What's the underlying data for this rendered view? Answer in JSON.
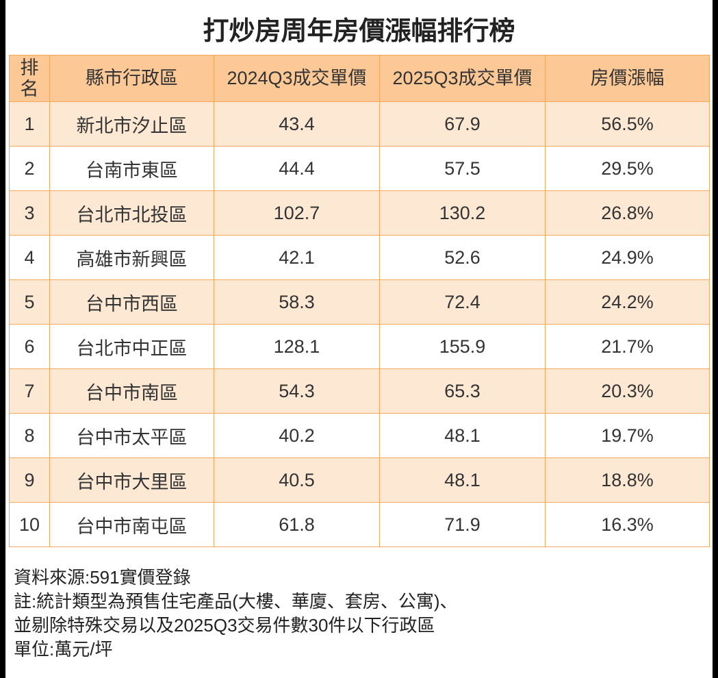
{
  "title": "打炒房周年房價漲幅排行榜",
  "table": {
    "header": [
      "排名",
      "縣市行政區",
      "2024Q3成交單價",
      "2025Q3成交單價",
      "房價漲幅"
    ],
    "rows": [
      [
        "1",
        "新北市汐止區",
        "43.4",
        "67.9",
        "56.5%"
      ],
      [
        "2",
        "台南市東區",
        "44.4",
        "57.5",
        "29.5%"
      ],
      [
        "3",
        "台北市北投區",
        "102.7",
        "130.2",
        "26.8%"
      ],
      [
        "4",
        "高雄市新興區",
        "42.1",
        "52.6",
        "24.9%"
      ],
      [
        "5",
        "台中市西區",
        "58.3",
        "72.4",
        "24.2%"
      ],
      [
        "6",
        "台北市中正區",
        "128.1",
        "155.9",
        "21.7%"
      ],
      [
        "7",
        "台中市南區",
        "54.3",
        "65.3",
        "20.3%"
      ],
      [
        "8",
        "台中市太平區",
        "40.2",
        "48.1",
        "19.7%"
      ],
      [
        "9",
        "台中市大里區",
        "40.5",
        "48.1",
        "18.8%"
      ],
      [
        "10",
        "台中市南屯區",
        "61.8",
        "71.9",
        "16.3%"
      ]
    ]
  },
  "notes": [
    "資料來源:591實價登錄",
    "註:統計類型為預售住宅產品(大樓、華廈、套房、公寓)、",
    "並剔除特殊交易以及2025Q3交易件數30件以下行政區",
    "單位:萬元/坪"
  ]
}
